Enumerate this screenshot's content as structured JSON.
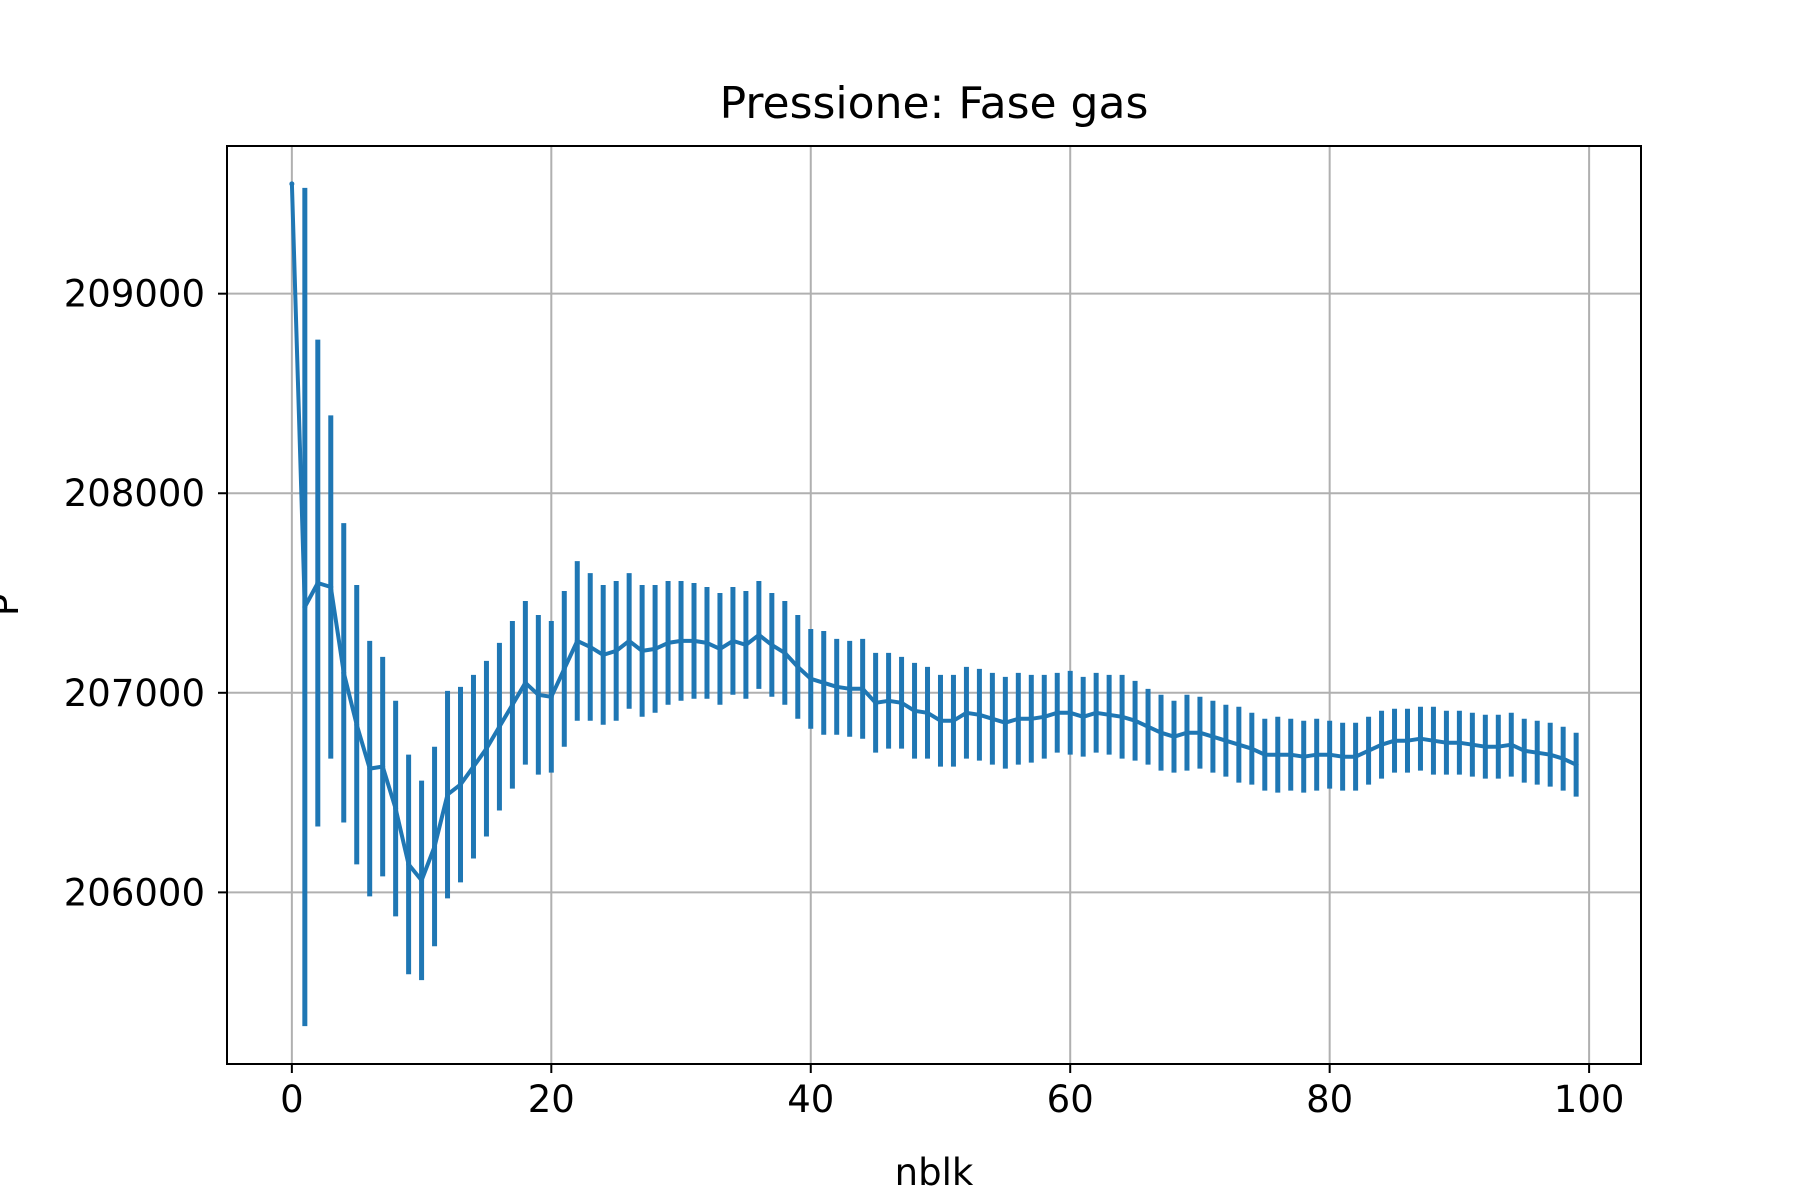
{
  "chart_data": {
    "type": "line",
    "title": "Pressione: Fase gas",
    "xlabel": "nblk",
    "ylabel": "P",
    "xlim": [
      -5,
      104
    ],
    "ylim": [
      205140,
      209740
    ],
    "xticks": [
      0,
      20,
      40,
      60,
      80,
      100
    ],
    "xtick_labels": [
      "0",
      "20",
      "40",
      "60",
      "80",
      "100"
    ],
    "yticks": [
      206000,
      207000,
      208000,
      209000
    ],
    "ytick_labels": [
      "206000",
      "207000",
      "208000",
      "209000"
    ],
    "grid": true,
    "legend": "none",
    "series": [
      {
        "color": "#1f77b4",
        "x": [
          0,
          1,
          2,
          3,
          4,
          5,
          6,
          7,
          8,
          9,
          10,
          11,
          12,
          13,
          14,
          15,
          16,
          17,
          18,
          19,
          20,
          21,
          22,
          23,
          24,
          25,
          26,
          27,
          28,
          29,
          30,
          31,
          32,
          33,
          34,
          35,
          36,
          37,
          38,
          39,
          40,
          41,
          42,
          43,
          44,
          45,
          46,
          47,
          48,
          49,
          50,
          51,
          52,
          53,
          54,
          55,
          56,
          57,
          58,
          59,
          60,
          61,
          62,
          63,
          64,
          65,
          66,
          67,
          68,
          69,
          70,
          71,
          72,
          73,
          74,
          75,
          76,
          77,
          78,
          79,
          80,
          81,
          82,
          83,
          84,
          85,
          86,
          87,
          88,
          89,
          90,
          91,
          92,
          93,
          94,
          95,
          96,
          97,
          98,
          99
        ],
        "y": [
          209550,
          207430,
          207550,
          207530,
          207100,
          206840,
          206620,
          206630,
          206420,
          206140,
          206060,
          206230,
          206490,
          206540,
          206630,
          206720,
          206830,
          206940,
          207050,
          206990,
          206980,
          207120,
          207260,
          207230,
          207190,
          207210,
          207260,
          207210,
          207220,
          207250,
          207260,
          207260,
          207250,
          207220,
          207260,
          207240,
          207290,
          207240,
          207200,
          207130,
          207070,
          207050,
          207030,
          207020,
          207020,
          206950,
          206960,
          206950,
          206910,
          206900,
          206860,
          206860,
          206900,
          206890,
          206870,
          206850,
          206870,
          206870,
          206880,
          206900,
          206900,
          206880,
          206900,
          206890,
          206880,
          206860,
          206830,
          206800,
          206780,
          206800,
          206800,
          206780,
          206760,
          206740,
          206720,
          206690,
          206690,
          206690,
          206680,
          206690,
          206690,
          206680,
          206680,
          206710,
          206740,
          206760,
          206760,
          206770,
          206760,
          206750,
          206750,
          206740,
          206730,
          206730,
          206740,
          206710,
          206700,
          206690,
          206670,
          206640
        ],
        "err": [
          0,
          2100,
          1220,
          860,
          750,
          700,
          640,
          550,
          540,
          550,
          500,
          500,
          520,
          490,
          460,
          440,
          420,
          420,
          410,
          400,
          380,
          390,
          400,
          370,
          350,
          350,
          340,
          330,
          320,
          310,
          300,
          290,
          280,
          280,
          270,
          270,
          270,
          260,
          260,
          260,
          250,
          260,
          240,
          240,
          250,
          250,
          240,
          230,
          240,
          230,
          230,
          230,
          230,
          230,
          230,
          230,
          230,
          220,
          210,
          200,
          210,
          200,
          200,
          200,
          210,
          200,
          190,
          190,
          180,
          190,
          180,
          180,
          180,
          190,
          180,
          180,
          190,
          180,
          180,
          180,
          170,
          170,
          170,
          170,
          170,
          160,
          160,
          160,
          170,
          160,
          160,
          160,
          160,
          160,
          160,
          160,
          160,
          160,
          160,
          160
        ]
      }
    ]
  }
}
